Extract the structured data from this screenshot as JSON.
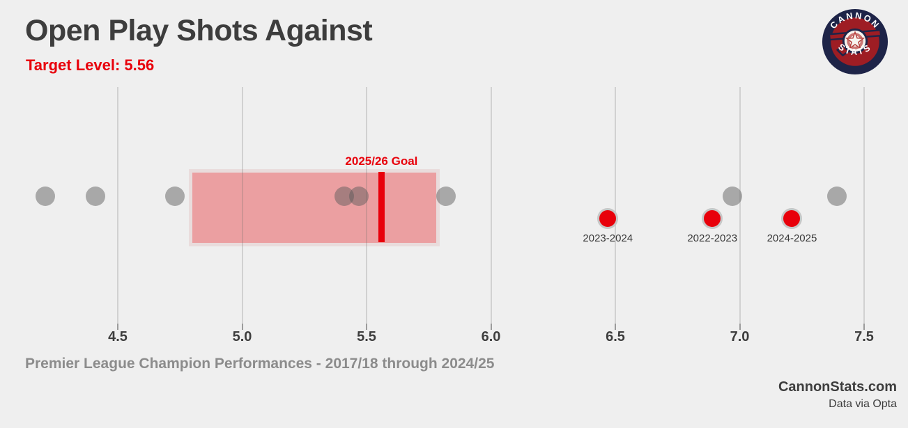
{
  "header": {
    "title": "Open Play Shots Against",
    "subtitle": "Target Level: 5.56"
  },
  "logo": {
    "top": "CANNON",
    "bottom": "STATS"
  },
  "footer": {
    "caption": "Premier League Champion Performances - 2017/18 through 2024/25",
    "brand": "CannonStats.com",
    "source": "Data via Opta"
  },
  "chart_data": {
    "type": "scatter",
    "title": "Open Play Shots Against",
    "target_level": 5.56,
    "goal_label": "2025/26 Goal",
    "x_ticks": [
      4.5,
      5.0,
      5.5,
      6.0,
      6.5,
      7.0,
      7.5
    ],
    "x_range": [
      4.2,
      7.6
    ],
    "grid": true,
    "target_band": {
      "min": 4.8,
      "max": 5.78
    },
    "champion_shots": [
      4.21,
      4.41,
      4.73,
      5.41,
      5.47,
      5.82,
      6.97,
      7.39
    ],
    "highlight_seasons": [
      {
        "label": "2023-2024",
        "value": 6.47
      },
      {
        "label": "2022-2023",
        "value": 6.89
      },
      {
        "label": "2024-2025",
        "value": 7.21
      }
    ],
    "colors": {
      "background": "#efefef",
      "dot_gray": "#b3b3b3",
      "dot_red": "#e8000b",
      "dot_ring": "#c7c7c7",
      "band_fill": "#efa3a5",
      "band_border": "#e9dcdc",
      "target_line": "#e8000b",
      "title_text": "#3d3d3d",
      "caption_text": "#8c8c8c"
    }
  }
}
